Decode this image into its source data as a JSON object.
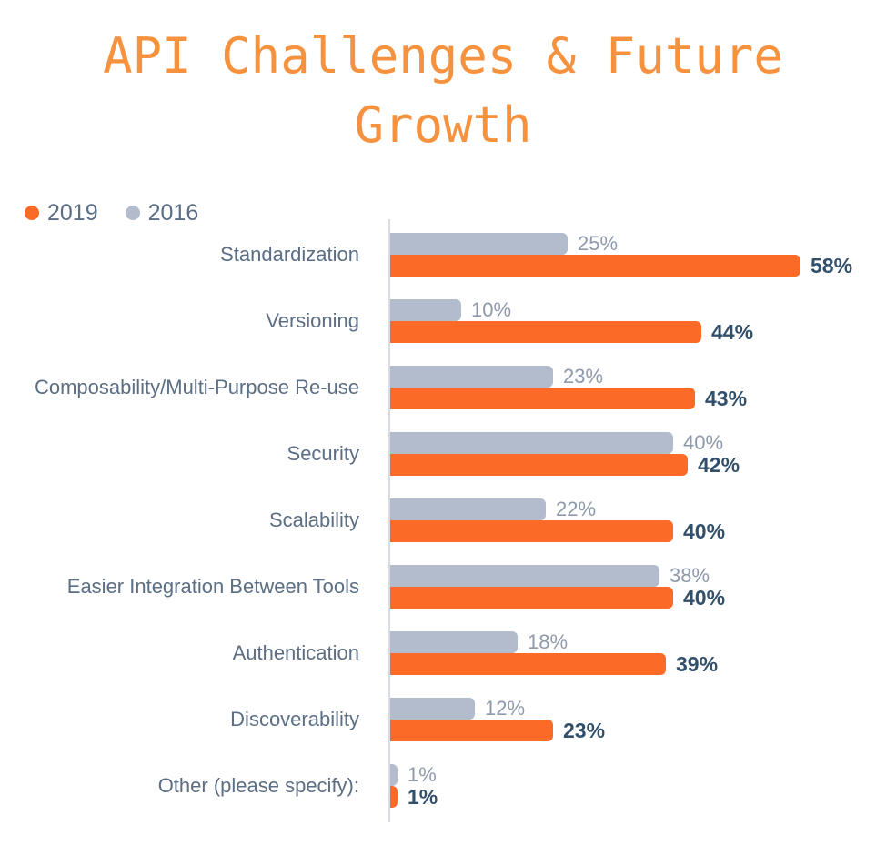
{
  "title": {
    "line1": "API Challenges & Future",
    "line2": "Growth",
    "color": "#F6923E"
  },
  "legend": {
    "items": [
      {
        "label": "2019",
        "color": "#FB6A26"
      },
      {
        "label": "2016",
        "color": "#B2BCCC"
      }
    ],
    "position": "top-left"
  },
  "colors": {
    "bar_2019": "#FB6A26",
    "bar_2016": "#B2BCCC",
    "title_text": "#F6923E",
    "category_text": "#5C6E84",
    "value_2016_text": "#8E9AAC",
    "value_2019_text": "#32506B",
    "axis_line": "#D8DBE0",
    "background": "#FFFFFF"
  },
  "chart_data": {
    "type": "bar",
    "orientation": "horizontal",
    "title": "API Challenges & Future Growth",
    "xlabel": "",
    "ylabel": "",
    "grid": false,
    "legend_position": "top-left",
    "xlim": [
      0,
      70
    ],
    "value_suffix": "%",
    "categories": [
      "Standardization",
      "Versioning",
      "Composability/Multi-Purpose Re-use",
      "Security",
      "Scalability",
      "Easier Integration Between Tools",
      "Authentication",
      "Discoverability",
      "Other (please specify):"
    ],
    "series": [
      {
        "name": "2019",
        "color": "#FB6A26",
        "values": [
          58,
          44,
          43,
          42,
          40,
          40,
          39,
          23,
          1
        ],
        "labels": [
          "58%",
          "44%",
          "43%",
          "42%",
          "40%",
          "40%",
          "39%",
          "23%",
          "1%"
        ]
      },
      {
        "name": "2016",
        "color": "#B2BCCC",
        "values": [
          25,
          10,
          23,
          40,
          22,
          38,
          18,
          12,
          1
        ],
        "labels": [
          "25%",
          "10%",
          "23%",
          "40%",
          "22%",
          "38%",
          "18%",
          "12%",
          "1%"
        ]
      }
    ],
    "bar_order_within_group": [
      "2016",
      "2019"
    ]
  }
}
